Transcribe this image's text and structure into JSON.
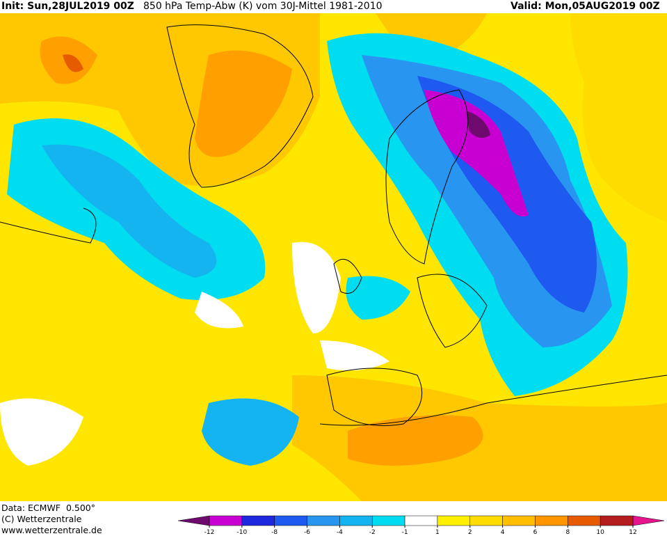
{
  "header": {
    "init": "Init: Sun,28JUL2019 00Z",
    "title": "850 hPa Temp-Abw (K) vom 30J-Mittel 1981-2010",
    "valid": "Valid: Mon,05AUG2019 00Z"
  },
  "footer": {
    "data": "Data: ECMWF  0.500°",
    "copyright": "(C) Wetterzentrale",
    "url": "www.wetterzentrale.de"
  },
  "colorbar": {
    "ticks": [
      -12,
      -10,
      -8,
      -6,
      -4,
      -2,
      -1,
      1,
      2,
      4,
      6,
      8,
      10,
      12
    ],
    "below_color": "#6e0a6e",
    "segment_colors": [
      "#c800d2",
      "#1e28dc",
      "#1e5af0",
      "#2896f0",
      "#14b4f0",
      "#00dcf0",
      "#ffffff",
      "#fff000",
      "#ffdc00",
      "#ffbe00",
      "#ff9600",
      "#e65a00",
      "#b41e1e"
    ],
    "above_color": "#e6148c"
  }
}
